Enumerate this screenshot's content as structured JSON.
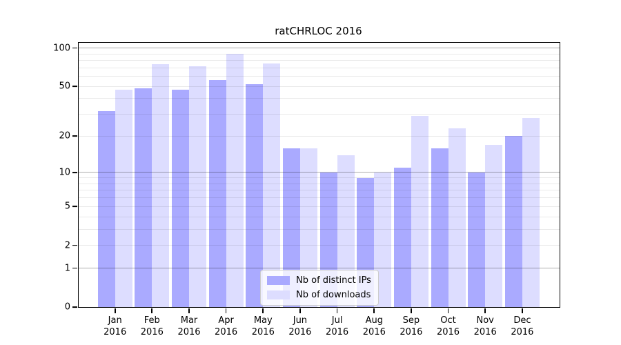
{
  "chart_data": {
    "type": "bar",
    "title": "ratCHRLOC 2016",
    "scale": "log1p",
    "grid": true,
    "legend_position": "bottom-center",
    "ylim": [
      0,
      100
    ],
    "ytick_labels": [
      100,
      50,
      20,
      10,
      5,
      2,
      1,
      0
    ],
    "gridlines": {
      "major": [
        1,
        10,
        100
      ],
      "minor": [
        2,
        3,
        4,
        5,
        6,
        7,
        8,
        9,
        20,
        30,
        40,
        50,
        60,
        70,
        80,
        90
      ]
    },
    "frame_color": "#000000",
    "categories": [
      "Jan 2016",
      "Feb 2016",
      "Mar 2016",
      "Apr 2016",
      "May 2016",
      "Jun 2016",
      "Jul 2016",
      "Aug 2016",
      "Sep 2016",
      "Oct 2016",
      "Nov 2016",
      "Dec 2016"
    ],
    "series": [
      {
        "name": "Nb of distinct IPs",
        "color": "#aaaaff",
        "values": [
          32,
          48,
          47,
          56,
          52,
          16,
          10,
          9,
          11,
          16,
          10,
          20
        ]
      },
      {
        "name": "Nb of downloads",
        "color": "#ddddff",
        "values": [
          47,
          75,
          72,
          90,
          76,
          16,
          14,
          10,
          29,
          23,
          17,
          28
        ]
      }
    ]
  }
}
